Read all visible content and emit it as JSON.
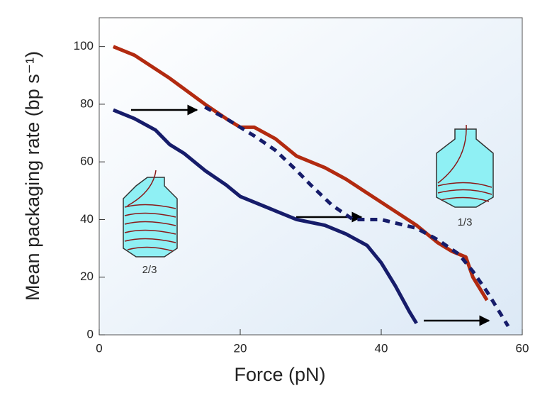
{
  "chart_data": {
    "type": "line",
    "xlabel": "Force (pN)",
    "ylabel": "Mean packaging rate (bp s⁻¹)",
    "xlim": [
      0,
      60
    ],
    "ylim": [
      0,
      110
    ],
    "xticks": [
      0,
      20,
      40,
      60
    ],
    "yticks": [
      0,
      20,
      40,
      60,
      80,
      100
    ],
    "annotations": [
      "2/3",
      "1/3"
    ],
    "series": [
      {
        "color": "#b22a10",
        "dash": false,
        "x": [
          2,
          5,
          10,
          15,
          18,
          20,
          22,
          25,
          28,
          32,
          35,
          40,
          45,
          48,
          50,
          52,
          53,
          55
        ],
        "values": [
          100,
          97,
          89,
          80,
          75,
          72,
          72,
          68,
          62,
          58,
          54,
          46,
          38,
          32,
          29,
          27,
          20,
          12
        ]
      },
      {
        "color": "#161c6a",
        "dash": false,
        "x": [
          2,
          5,
          8,
          10,
          12,
          15,
          18,
          20,
          25,
          28,
          32,
          35,
          38,
          40,
          42,
          44,
          45
        ],
        "values": [
          78,
          75,
          71,
          66,
          63,
          57,
          52,
          48,
          43,
          40,
          38,
          35,
          31,
          25,
          17,
          8,
          4
        ]
      },
      {
        "color": "#161c6a",
        "dash": true,
        "x": [
          15,
          18,
          20,
          22,
          25,
          28,
          30,
          33,
          36,
          40,
          45,
          48,
          51,
          53,
          55,
          57,
          58
        ],
        "values": [
          79,
          75,
          72,
          69,
          64,
          57,
          52,
          45,
          40,
          40,
          37,
          33,
          28,
          22,
          15,
          7,
          3
        ]
      }
    ]
  }
}
